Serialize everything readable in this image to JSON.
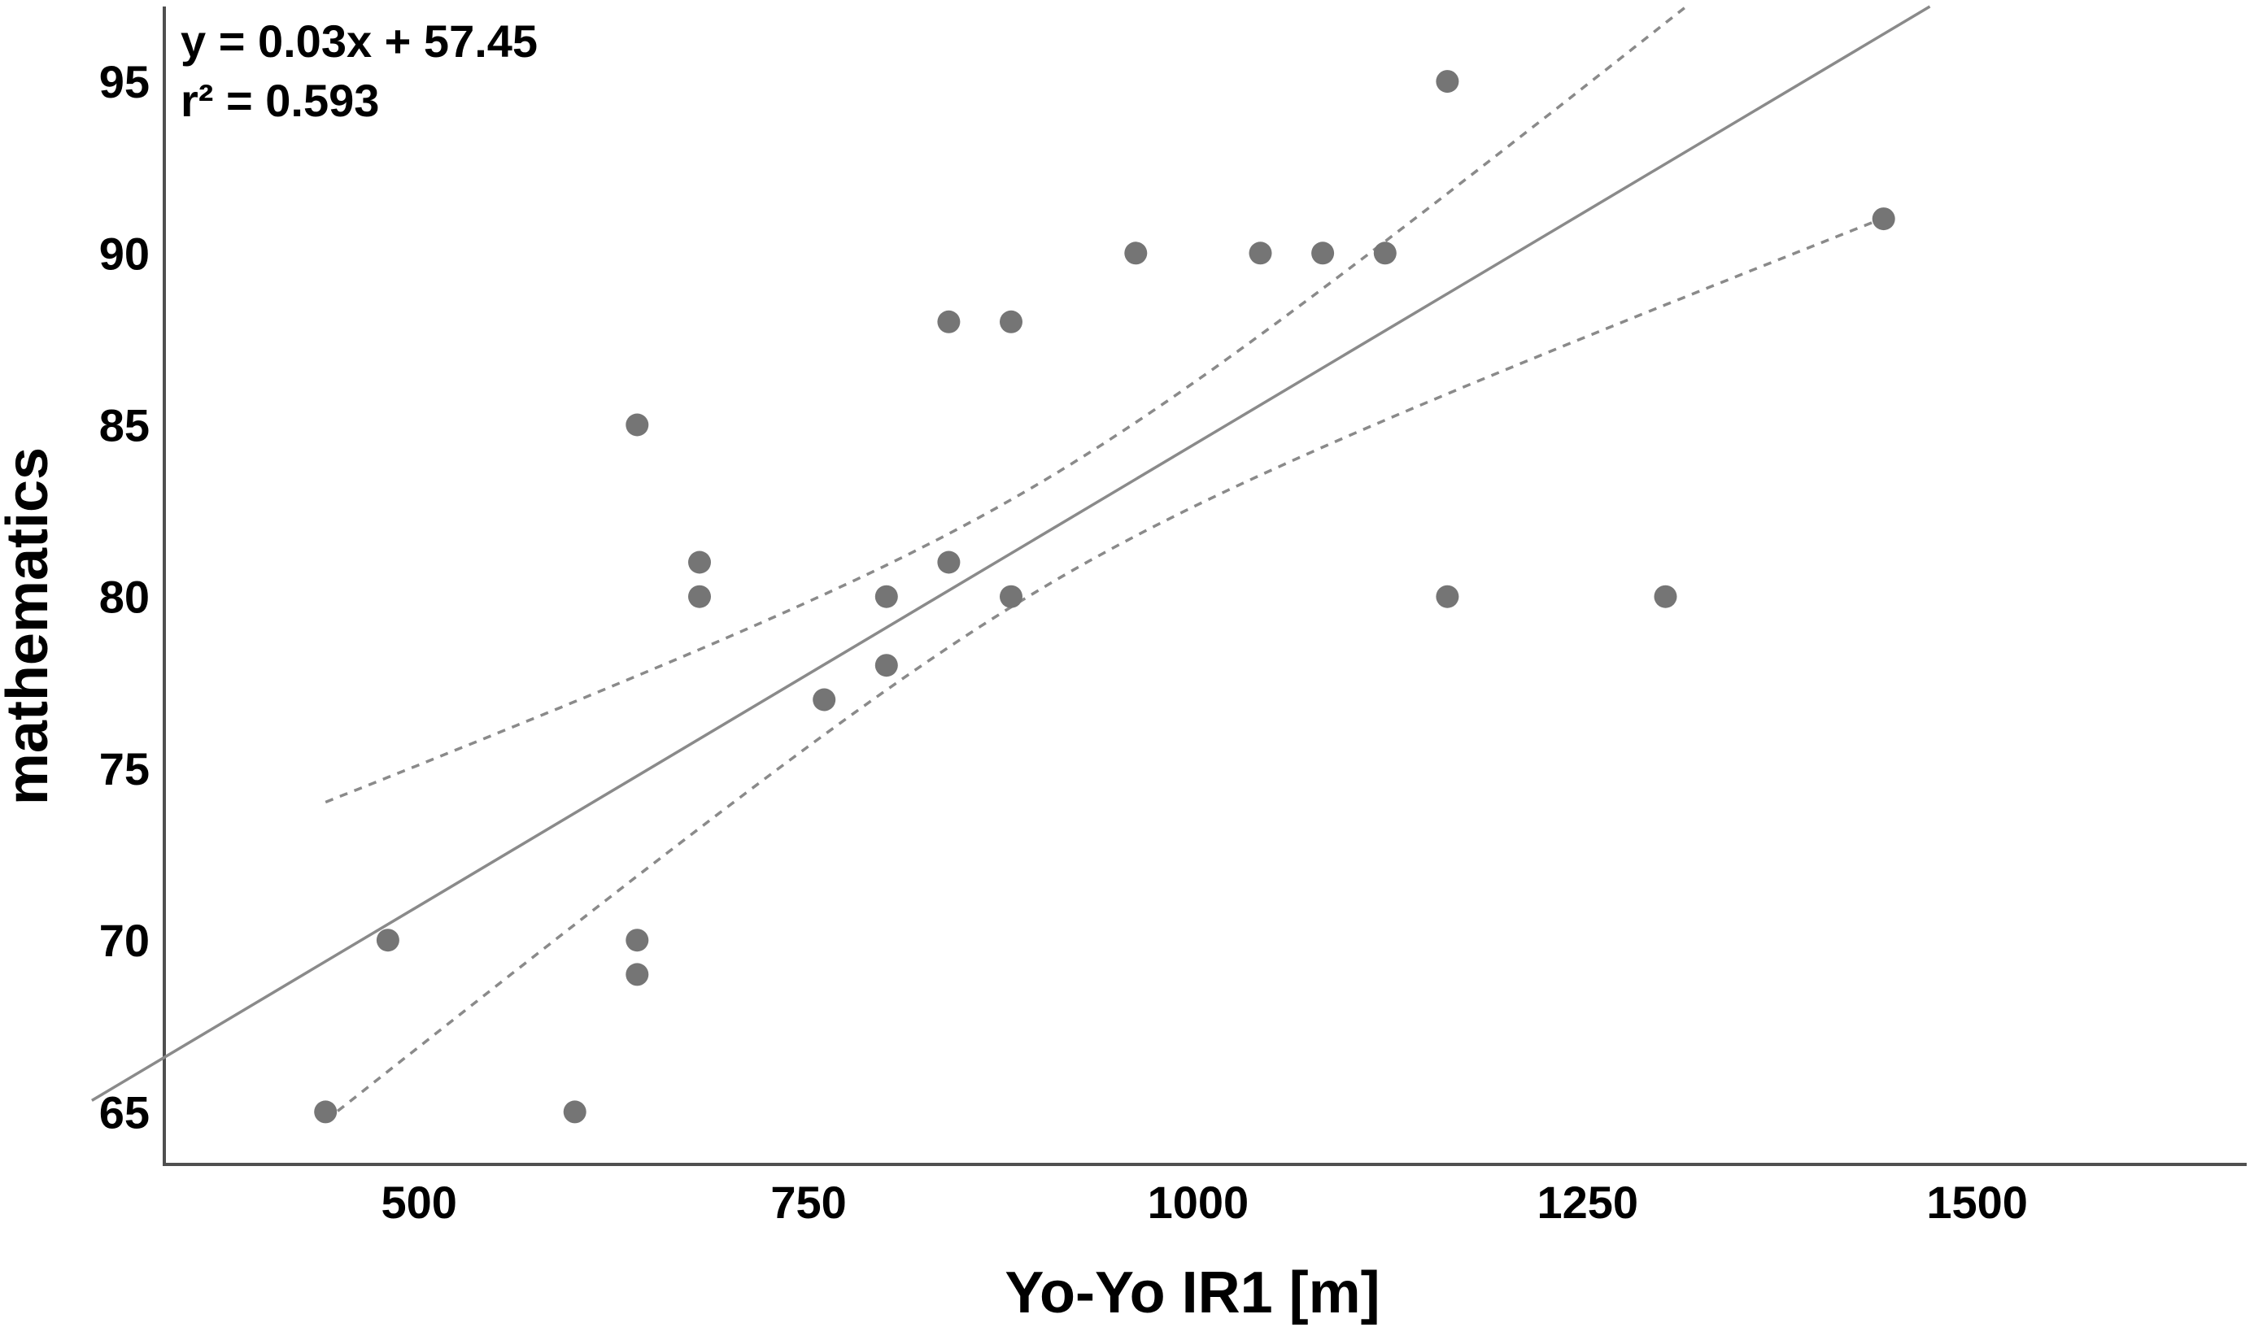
{
  "chart_data": {
    "type": "scatter",
    "title": "",
    "xlabel": "Yo-Yo IR1 [m]",
    "ylabel": "mathematics",
    "equation_label": "y = 0.03x + 57.45",
    "r2_label": "r² = 0.593",
    "axis": {
      "xlim": [
        336.5,
        1673
      ],
      "ylim": [
        63.47,
        97.18
      ],
      "x_ticks": [
        "500",
        "750",
        "1000",
        "1250",
        "1500"
      ],
      "y_ticks": [
        "65",
        "70",
        "75",
        "80",
        "85",
        "90",
        "95"
      ],
      "grid": false,
      "legend": false
    },
    "points": [
      [
        440,
        65
      ],
      [
        480,
        70
      ],
      [
        600,
        65
      ],
      [
        640,
        69
      ],
      [
        640,
        70
      ],
      [
        640,
        85
      ],
      [
        680,
        80
      ],
      [
        680,
        81
      ],
      [
        760,
        77
      ],
      [
        800,
        78
      ],
      [
        800,
        80
      ],
      [
        840,
        81
      ],
      [
        840,
        88
      ],
      [
        880,
        80
      ],
      [
        880,
        88
      ],
      [
        960,
        90
      ],
      [
        1040,
        90
      ],
      [
        1080,
        90
      ],
      [
        1120,
        90
      ],
      [
        1160,
        80
      ],
      [
        1160,
        95
      ],
      [
        1300,
        80
      ],
      [
        1440,
        91
      ]
    ],
    "regression": {
      "slope_labeled": 0.03,
      "intercept_labeled": 57.45,
      "r_squared": 0.593,
      "slope_drawn": 0.027,
      "intercept_drawn": 57.5,
      "draw_x_range": [
        290,
        1470
      ]
    },
    "ci_band": {
      "x_range": [
        440,
        1440
      ],
      "half_width_mid": 1.55,
      "spread": 0.0095,
      "x_mean": 900
    },
    "colors": {
      "point": "#757575",
      "fit_line": "#8a8a8a",
      "ci_line": "#8a8a8a",
      "axis": "#4f4f4f",
      "text": "#000000"
    }
  }
}
